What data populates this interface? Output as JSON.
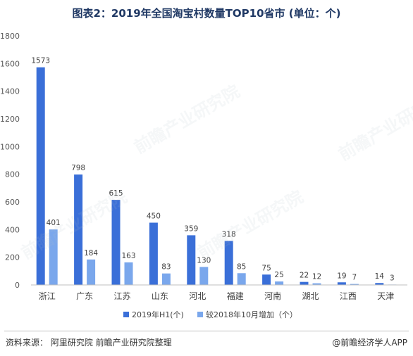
{
  "title": "图表2：2019年全国淘宝村数量TOP10省市 (单位：个)",
  "chart_data": {
    "type": "bar",
    "categories": [
      "浙江",
      "广东",
      "江苏",
      "山东",
      "河北",
      "福建",
      "河南",
      "湖北",
      "江西",
      "天津"
    ],
    "series": [
      {
        "name": "2019年H1(个)",
        "color": "#3a6fd8",
        "values": [
          1573,
          798,
          615,
          450,
          359,
          318,
          75,
          22,
          19,
          14
        ]
      },
      {
        "name": "较2018年10月增加（个）",
        "color": "#7aa7ec",
        "values": [
          401,
          184,
          163,
          83,
          130,
          85,
          25,
          12,
          7,
          3
        ]
      }
    ],
    "yticks": [
      0,
      200,
      400,
      600,
      800,
      1000,
      1200,
      1400,
      1600,
      1800
    ],
    "ylim": [
      0,
      1800
    ],
    "legend_position": "bottom"
  },
  "footer": {
    "source": "资料来源： 阿里研究院 前瞻产业研究院整理",
    "brand": "@前瞻经济学人APP"
  },
  "watermark": "前瞻产业研究院"
}
